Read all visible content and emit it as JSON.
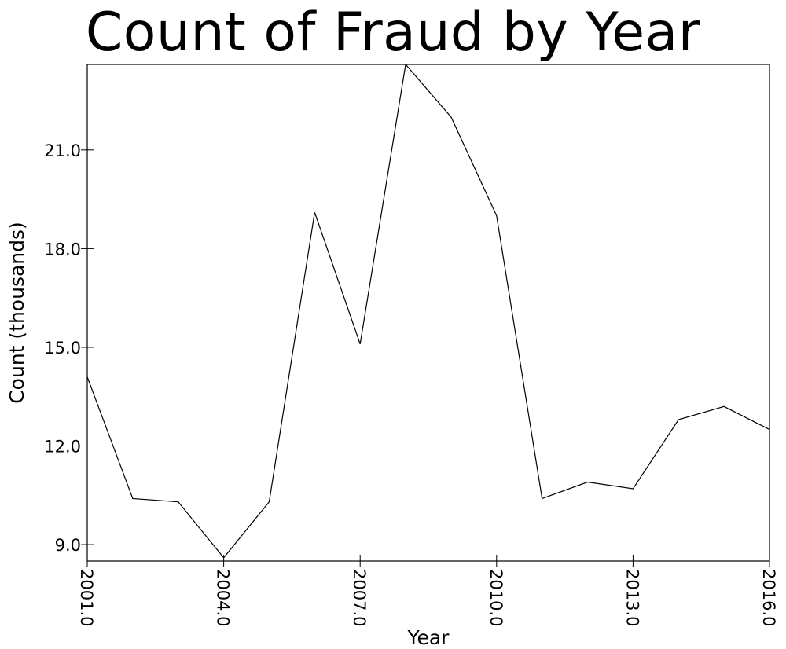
{
  "chart_data": {
    "type": "line",
    "title": "Count of Fraud by Year",
    "xlabel": "Year",
    "ylabel": "Count (thousands)",
    "x": [
      2001,
      2002,
      2003,
      2004,
      2005,
      2006,
      2007,
      2008,
      2009,
      2010,
      2011,
      2012,
      2013,
      2014,
      2015,
      2016
    ],
    "series": [
      {
        "values": [
          14.1,
          10.4,
          10.3,
          8.6,
          10.3,
          19.1,
          15.1,
          23.6,
          22.0,
          19.0,
          10.4,
          10.9,
          10.7,
          12.8,
          13.2,
          12.5
        ]
      }
    ],
    "xlim": [
      2001,
      2016
    ],
    "ylim": [
      8.5,
      23.6
    ],
    "xticks": [
      2001,
      2004,
      2007,
      2010,
      2013,
      2016
    ],
    "xtick_labels": [
      "2001.0",
      "2004.0",
      "2007.0",
      "2010.0",
      "2013.0",
      "2016.0"
    ],
    "yticks": [
      9,
      12,
      15,
      18,
      21
    ],
    "ytick_labels": [
      "9.0",
      "12.0",
      "15.0",
      "18.0",
      "21.0"
    ],
    "grid": false,
    "line_color": "#000000"
  }
}
